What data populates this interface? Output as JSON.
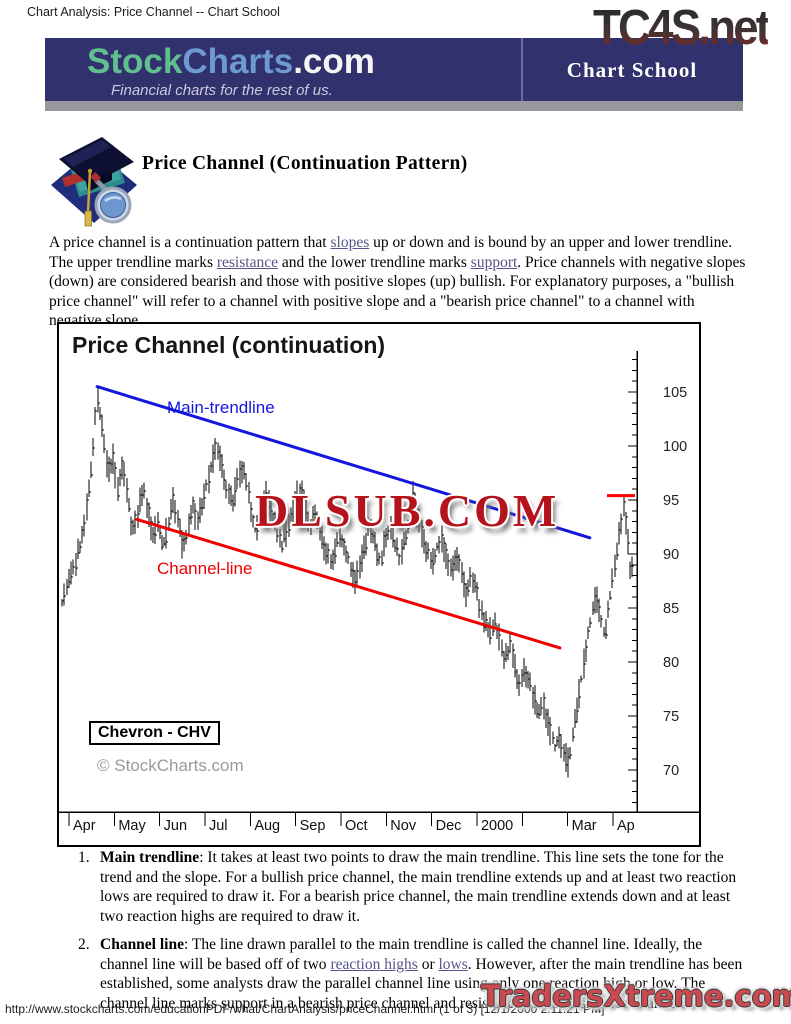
{
  "page": {
    "header_title": "Chart Analysis: Price Channel -- Chart School",
    "tc4s_logo": "TC4S.net",
    "tradersxtreme_logo": "TradersXtreme.com",
    "footer": "http://www.stockcharts.com/educationPDF/what/ChartAnalysis/priceChannel.html (1 of 3) [12/1/2000 2:11:21 PM]"
  },
  "banner": {
    "logo_stock": "Stock",
    "logo_charts": "Charts",
    "logo_com": ".com",
    "tagline": "Financial charts for the rest of us.",
    "section": "Chart School",
    "bg_color": "#31316d",
    "green": "#5fc08e",
    "blue": "#6e9ad2"
  },
  "article": {
    "heading": "Price Channel (Continuation Pattern)",
    "intro": [
      {
        "t": "A price channel is a continuation pattern that "
      },
      {
        "t": "slopes",
        "link": true
      },
      {
        "t": " up or down and is bound by an upper and lower trendline. The upper trendline marks "
      },
      {
        "t": "resistance",
        "link": true
      },
      {
        "t": " and the lower trendline marks "
      },
      {
        "t": "support",
        "link": true
      },
      {
        "t": ". Price channels with negative slopes (down) are considered bearish and those with positive slopes (up) bullish. For explanatory purposes, a \"bullish price channel\" will refer to a channel with positive slope and a \"bearish price channel\" to a channel with negative slope."
      }
    ],
    "list_items": [
      {
        "num": "1.",
        "label": "Main trendline",
        "segments": [
          {
            "t": "It takes at least two points to draw the main trendline. This line sets the tone for the trend and the slope. For a bullish price channel, the main trendline extends up and at least two reaction lows are required to draw it. For a bearish price channel, the main trendline extends down and at least two reaction highs are required to draw it."
          }
        ]
      },
      {
        "num": "2.",
        "label": "Channel line",
        "segments": [
          {
            "t": "The line drawn parallel to the main trendline is called the channel line. Ideally, the channel line will be based off of two "
          },
          {
            "t": "reaction highs",
            "link": true
          },
          {
            "t": " or "
          },
          {
            "t": "lows",
            "link": true
          },
          {
            "t": ". However, after the main trendline has been established, some analysts draw the parallel channel line using only one reaction high or low. The channel line marks support in a bearish price channel and resistance in a bullish price channel."
          }
        ]
      }
    ]
  },
  "chart_data": {
    "type": "ohlc_bar",
    "title": "Price Channel (continuation)",
    "symbol_label": "Chevron - CHV",
    "copyright": "© StockCharts.com",
    "watermark": "DLSUB.COM",
    "x_labels": [
      "Apr",
      "May",
      "Jun",
      "Jul",
      "Aug",
      "Sep",
      "Oct",
      "Nov",
      "Dec",
      "2000",
      "",
      "Mar",
      "Ap"
    ],
    "y_ticks": [
      105,
      100,
      95,
      90,
      85,
      80,
      75,
      70
    ],
    "y_minor_step": 1,
    "y_visible_range": [
      66,
      109
    ],
    "bar_color": "#000000",
    "price_path": [
      [
        -0.15,
        85.5
      ],
      [
        0.0,
        87.5
      ],
      [
        0.15,
        89.5
      ],
      [
        0.3,
        91.5
      ],
      [
        0.45,
        96
      ],
      [
        0.62,
        104.6
      ],
      [
        0.75,
        101
      ],
      [
        0.86,
        97.5
      ],
      [
        0.97,
        99
      ],
      [
        1.08,
        96
      ],
      [
        1.19,
        98.5
      ],
      [
        1.3,
        95
      ],
      [
        1.41,
        92
      ],
      [
        1.52,
        94
      ],
      [
        1.63,
        96.3
      ],
      [
        1.74,
        94
      ],
      [
        1.85,
        91.5
      ],
      [
        1.96,
        93
      ],
      [
        2.07,
        90.5
      ],
      [
        2.18,
        92.5
      ],
      [
        2.3,
        95
      ],
      [
        2.4,
        93
      ],
      [
        2.51,
        90.5
      ],
      [
        2.62,
        92
      ],
      [
        2.73,
        94.5
      ],
      [
        2.84,
        93
      ],
      [
        2.95,
        95
      ],
      [
        3.05,
        96.5
      ],
      [
        3.16,
        98.5
      ],
      [
        3.27,
        99.8
      ],
      [
        3.38,
        98
      ],
      [
        3.49,
        96
      ],
      [
        3.6,
        94.5
      ],
      [
        3.71,
        96.5
      ],
      [
        3.82,
        98
      ],
      [
        3.93,
        96
      ],
      [
        4.02,
        94
      ],
      [
        4.13,
        92
      ],
      [
        4.24,
        93.5
      ],
      [
        4.35,
        95.5
      ],
      [
        4.46,
        94
      ],
      [
        4.57,
        92.5
      ],
      [
        4.68,
        90.5
      ],
      [
        4.79,
        92
      ],
      [
        4.9,
        93.5
      ],
      [
        5.0,
        95
      ],
      [
        5.1,
        96
      ],
      [
        5.21,
        94.5
      ],
      [
        5.32,
        92.5
      ],
      [
        5.43,
        94
      ],
      [
        5.54,
        92
      ],
      [
        5.65,
        90.5
      ],
      [
        5.76,
        89
      ],
      [
        5.87,
        90.5
      ],
      [
        5.98,
        92
      ],
      [
        6.09,
        90.5
      ],
      [
        6.2,
        89
      ],
      [
        6.31,
        87.5
      ],
      [
        6.42,
        89
      ],
      [
        6.53,
        91
      ],
      [
        6.64,
        92.5
      ],
      [
        6.75,
        91
      ],
      [
        6.86,
        89.5
      ],
      [
        6.97,
        91
      ],
      [
        7.08,
        92.5
      ],
      [
        7.19,
        91
      ],
      [
        7.3,
        89.5
      ],
      [
        7.41,
        91
      ],
      [
        7.52,
        93.5
      ],
      [
        7.59,
        96.2
      ],
      [
        7.66,
        94
      ],
      [
        7.77,
        92
      ],
      [
        7.88,
        90.5
      ],
      [
        7.99,
        89
      ],
      [
        8.1,
        90.5
      ],
      [
        8.21,
        91.5
      ],
      [
        8.32,
        90
      ],
      [
        8.43,
        88.5
      ],
      [
        8.54,
        90
      ],
      [
        8.65,
        88
      ],
      [
        8.76,
        86.5
      ],
      [
        8.87,
        88
      ],
      [
        8.98,
        86.5
      ],
      [
        9.06,
        85
      ],
      [
        9.17,
        83.5
      ],
      [
        9.28,
        82.5
      ],
      [
        9.39,
        84
      ],
      [
        9.5,
        82
      ],
      [
        9.61,
        80
      ],
      [
        9.72,
        81.5
      ],
      [
        9.83,
        79.5
      ],
      [
        9.94,
        78
      ],
      [
        10.05,
        79.5
      ],
      [
        10.16,
        78
      ],
      [
        10.27,
        76.5
      ],
      [
        10.36,
        75
      ],
      [
        10.45,
        76.5
      ],
      [
        10.54,
        75
      ],
      [
        10.63,
        73.5
      ],
      [
        10.72,
        72
      ],
      [
        10.81,
        73.5
      ],
      [
        10.9,
        72
      ],
      [
        11.0,
        70.5
      ],
      [
        11.09,
        72.5
      ],
      [
        11.18,
        75
      ],
      [
        11.27,
        77.5
      ],
      [
        11.36,
        80
      ],
      [
        11.45,
        82.5
      ],
      [
        11.54,
        84.5
      ],
      [
        11.63,
        86
      ],
      [
        11.72,
        84
      ],
      [
        11.81,
        82.5
      ],
      [
        11.9,
        85
      ],
      [
        11.99,
        87.5
      ],
      [
        12.08,
        90
      ],
      [
        12.17,
        92.5
      ],
      [
        12.24,
        94.3
      ],
      [
        12.31,
        92
      ],
      [
        12.38,
        89
      ],
      [
        12.43,
        88.5
      ]
    ],
    "annotations": {
      "main_trendline": {
        "label": "Main-trendline",
        "color": "#1515e0",
        "from": [
          0.62,
          105.5
        ],
        "to": [
          11.49,
          91.5
        ]
      },
      "channel_line": {
        "label": "Channel-line",
        "color": "#f00000",
        "from": [
          1.5,
          93.2
        ],
        "to": [
          10.83,
          81.3
        ]
      },
      "last_price_marker": {
        "price": 95.4,
        "color": "#ff0000"
      }
    }
  }
}
